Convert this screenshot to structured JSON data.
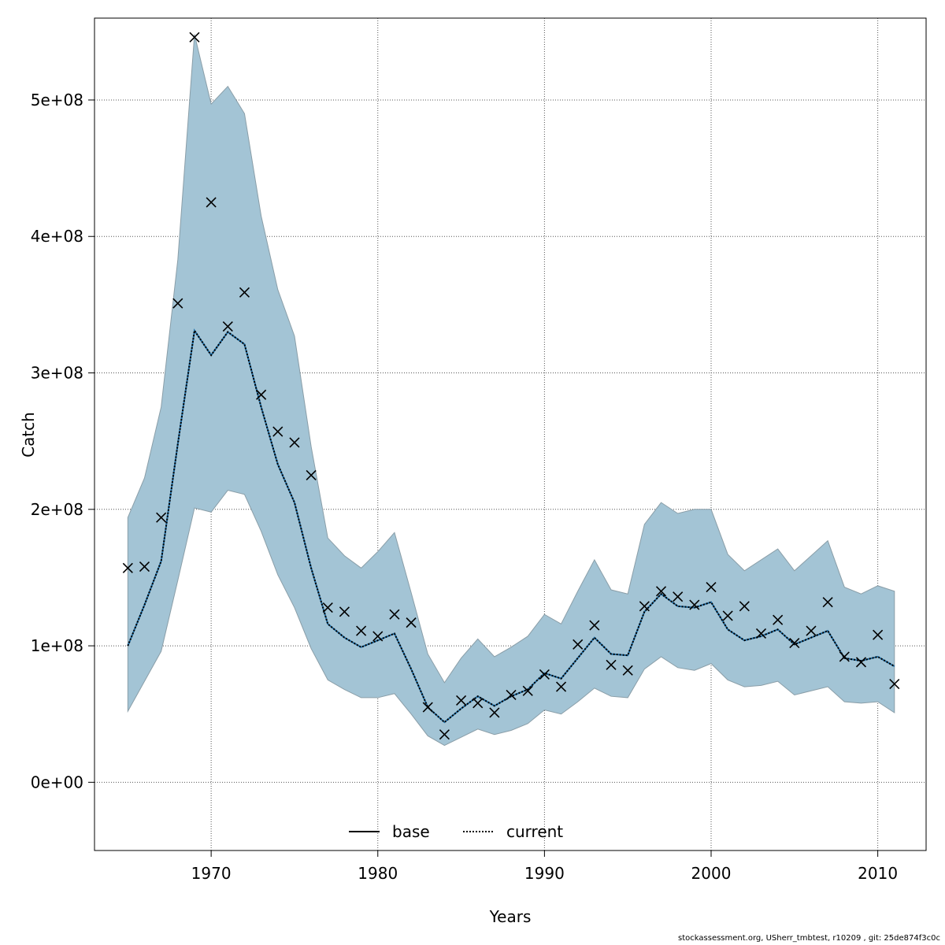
{
  "colors": {
    "band_fill": "#a3c4d5",
    "band_stroke": "#8a9ea8",
    "current_line": "#000000",
    "current_line_accent": "#1f6fa8",
    "observed_marker": "#000000",
    "grid": "#555555"
  },
  "footer": "stockassessment.org, USherr_tmbtest, r10209 , git: 25de874f3c0c",
  "chart_data": {
    "type": "line",
    "xlabel": "Years",
    "ylabel": "Catch",
    "xlim": [
      1963,
      2012.9
    ],
    "ylim": [
      -50000000.0,
      560000000
    ],
    "xticks": [
      1970,
      1980,
      1990,
      2000,
      2010
    ],
    "yticks": [
      0,
      100000000,
      200000000,
      300000000,
      400000000,
      500000000
    ],
    "yticklabels": [
      "0e+00",
      "1e+08",
      "2e+08",
      "3e+08",
      "4e+08",
      "5e+08"
    ],
    "grid": true,
    "legend": {
      "placement": "bottom-center",
      "entries": [
        {
          "label": "base",
          "style": "solid"
        },
        {
          "label": "current",
          "style": "dotted"
        }
      ]
    },
    "x": [
      1965,
      1966,
      1967,
      1968,
      1969,
      1970,
      1971,
      1972,
      1973,
      1974,
      1975,
      1976,
      1977,
      1978,
      1979,
      1980,
      1981,
      1982,
      1983,
      1984,
      1985,
      1986,
      1987,
      1988,
      1989,
      1990,
      1991,
      1992,
      1993,
      1994,
      1995,
      1996,
      1997,
      1998,
      1999,
      2000,
      2001,
      2002,
      2003,
      2004,
      2005,
      2006,
      2007,
      2008,
      2009,
      2010,
      2011
    ],
    "series": [
      {
        "name": "current",
        "values": [
          100000000,
          130000000,
          162000000,
          248000000,
          331000000,
          313000000,
          330000000,
          321000000,
          275000000,
          233000000,
          205000000,
          157000000,
          116000000,
          106000000,
          99000000,
          104000000,
          109000000,
          83000000,
          55000000,
          44000000,
          54000000,
          63000000,
          56000000,
          63000000,
          68000000,
          80000000,
          76000000,
          91000000,
          106000000,
          94000000,
          93000000,
          125000000,
          138000000,
          129000000,
          128000000,
          132000000,
          112000000,
          104000000,
          107000000,
          112000000,
          101000000,
          106000000,
          111000000,
          91000000,
          89000000,
          92000000,
          85000000
        ]
      }
    ],
    "band": {
      "lower": [
        52000000,
        74000000,
        96000000,
        148000000,
        201000000,
        198000000,
        214000000,
        211000000,
        184000000,
        152000000,
        128000000,
        98000000,
        75000000,
        68000000,
        62000000,
        62000000,
        65000000,
        50000000,
        34000000,
        27000000,
        33000000,
        39000000,
        35000000,
        38000000,
        43000000,
        53000000,
        50000000,
        59000000,
        69000000,
        63000000,
        62000000,
        83000000,
        92000000,
        84000000,
        82000000,
        87000000,
        75000000,
        70000000,
        71000000,
        74000000,
        64000000,
        67000000,
        70000000,
        59000000,
        58000000,
        59000000,
        51000000
      ],
      "upper": [
        194000000,
        223000000,
        275000000,
        383000000,
        548000000,
        497000000,
        510000000,
        490000000,
        415000000,
        361000000,
        327000000,
        246000000,
        179000000,
        166000000,
        157000000,
        169000000,
        183000000,
        139000000,
        94000000,
        73000000,
        91000000,
        105000000,
        92000000,
        99000000,
        107000000,
        123000000,
        116000000,
        140000000,
        163000000,
        141000000,
        138000000,
        189000000,
        205000000,
        197000000,
        200000000,
        200000000,
        167000000,
        155000000,
        163000000,
        171000000,
        155000000,
        166000000,
        177000000,
        143000000,
        138000000,
        144000000,
        140000000
      ]
    },
    "observed": [
      157000000,
      158000000,
      194000000,
      351000000,
      546000000,
      425000000,
      334000000,
      359000000,
      284000000,
      257000000,
      249000000,
      225000000,
      128000000,
      125000000,
      111000000,
      107000000,
      123000000,
      117000000,
      55000000,
      35000000,
      60000000,
      58000000,
      51000000,
      64000000,
      67000000,
      79000000,
      70000000,
      101000000,
      115000000,
      86000000,
      82000000,
      129000000,
      140000000,
      136000000,
      130000000,
      143000000,
      122000000,
      129000000,
      109000000,
      119000000,
      102000000,
      111000000,
      132000000,
      92000000,
      88000000,
      108000000,
      72000000
    ]
  }
}
